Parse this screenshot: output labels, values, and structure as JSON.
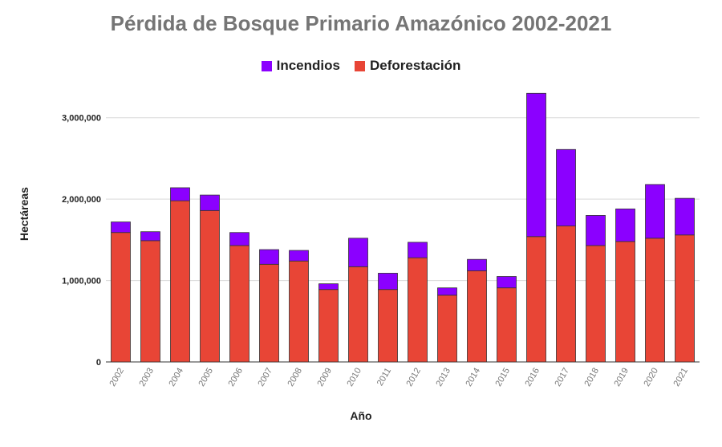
{
  "chart_data": {
    "type": "bar",
    "stacked": true,
    "title": "Pérdida de Bosque Primario Amazónico 2002-2021",
    "xlabel": "Año",
    "ylabel": "Hectáreas",
    "categories": [
      "2002",
      "2003",
      "2004",
      "2005",
      "2006",
      "2007",
      "2008",
      "2009",
      "2010",
      "2011",
      "2012",
      "2013",
      "2014",
      "2015",
      "2016",
      "2017",
      "2018",
      "2019",
      "2020",
      "2021"
    ],
    "series": [
      {
        "name": "Deforestación",
        "color": "#e84536",
        "values": [
          1590000,
          1490000,
          1980000,
          1860000,
          1430000,
          1200000,
          1240000,
          890000,
          1170000,
          890000,
          1280000,
          820000,
          1120000,
          910000,
          1540000,
          1670000,
          1430000,
          1480000,
          1520000,
          1560000
        ]
      },
      {
        "name": "Incendios",
        "color": "#8b00ff",
        "values": [
          130000,
          110000,
          160000,
          190000,
          160000,
          180000,
          130000,
          70000,
          350000,
          200000,
          190000,
          90000,
          140000,
          140000,
          1760000,
          940000,
          370000,
          400000,
          660000,
          450000
        ]
      }
    ],
    "ylim": [
      0,
      3500000
    ],
    "yticks": [
      0,
      1000000,
      2000000,
      3000000
    ],
    "ytick_labels": [
      "0",
      "1,000,000",
      "2,000,000",
      "3,000,000"
    ],
    "grid": true,
    "legend_position": "top-center"
  }
}
